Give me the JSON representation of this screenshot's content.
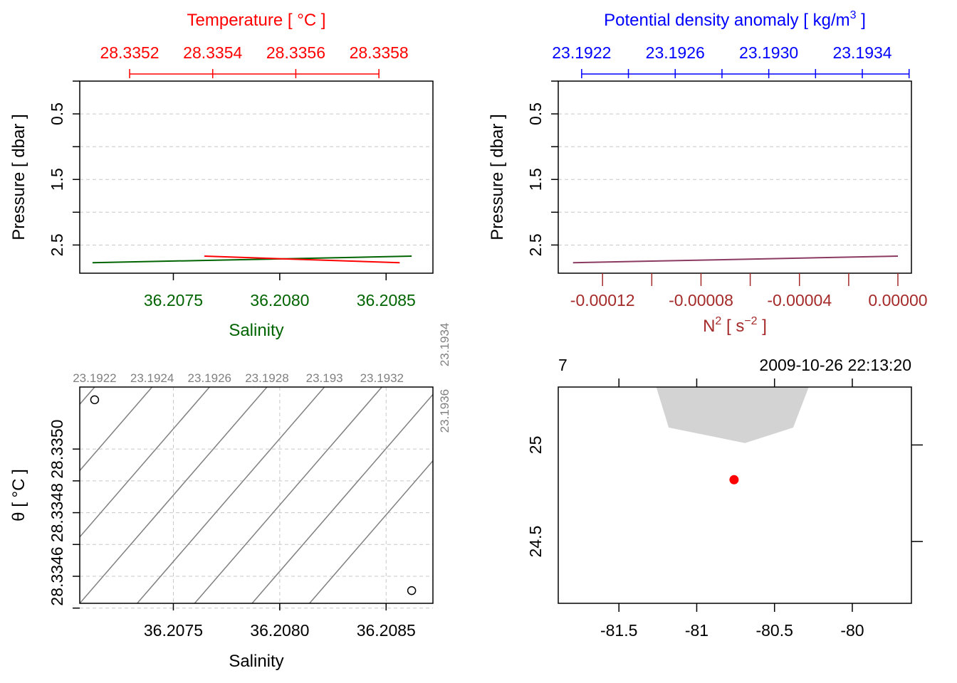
{
  "colors": {
    "temperature": "#ff0000",
    "salinity": "#006400",
    "density": "#0000ff",
    "n2": "#a52a2a",
    "profile": "#8b3a62",
    "isopycnal": "#808080",
    "grid": "#c8c8c8",
    "coast": "#d3d3d3",
    "station": "#ff0000"
  },
  "chart_data": [
    {
      "type": "line",
      "panel": "temperature-salinity-profile",
      "title": "Temperature [ °C ]",
      "xlabel": "Salinity",
      "ylabel": "Pressure [ dbar ]",
      "x_temperature_lim": [
        28.33508,
        28.33593
      ],
      "x_salinity_lim": [
        36.20706,
        36.20872
      ],
      "ylim": [
        0,
        2.93
      ],
      "y_reversed": true,
      "temperature_ticks": [
        "28.3352",
        "28.3354",
        "28.3356",
        "28.3358"
      ],
      "salinity_ticks": [
        "36.2075",
        "36.2080",
        "36.2085"
      ],
      "y_ticks": [
        "0.5",
        "1.5",
        "2.5"
      ],
      "y_minor_ticks": [
        0,
        0.5,
        1,
        1.5,
        2,
        2.5
      ],
      "grid": true,
      "series": [
        {
          "key": "temperature",
          "x": [
            28.33538,
            28.33585
          ],
          "y": [
            2.67,
            2.77
          ]
        },
        {
          "key": "salinity",
          "x": [
            36.20712,
            36.20862
          ],
          "y": [
            2.77,
            2.67
          ]
        }
      ]
    },
    {
      "type": "line",
      "panel": "density-n2-profile",
      "title": "Potential density anomaly [ kg/m",
      "title_sup": "3",
      "title_end": " ]",
      "xlabel": "N",
      "xlabel_sup": "2",
      "xlabel_mid": " [ s",
      "xlabel_sup2": "−2",
      "xlabel_end": " ]",
      "ylabel": "Pressure [ dbar ]",
      "x_density_lim": [
        23.1921,
        23.19361
      ],
      "x_n2_lim": [
        -0.000138,
        5.5e-06
      ],
      "ylim": [
        0,
        2.93
      ],
      "y_reversed": true,
      "density_ticks": [
        "23.1922",
        "23.1926",
        "23.1930",
        "23.1934"
      ],
      "density_minor_ticks": [
        23.1922,
        23.1924,
        23.1926,
        23.1928,
        23.193,
        23.1932,
        23.1934,
        23.1936
      ],
      "n2_ticks": [
        "-0.00012",
        "-0.00008",
        "-0.00004",
        "0.00000"
      ],
      "n2_minor_ticks": [
        -0.00012,
        -0.0001,
        -8e-05,
        -6e-05,
        -4e-05,
        -2e-05,
        0
      ],
      "y_ticks": [
        "0.5",
        "1.5",
        "2.5"
      ],
      "y_minor_ticks": [
        0,
        0.5,
        1,
        1.5,
        2,
        2.5
      ],
      "grid": true,
      "series": [
        {
          "key": "n2",
          "x": [
            -0.000132,
            0.0
          ],
          "y": [
            2.77,
            2.67
          ]
        }
      ]
    },
    {
      "type": "scatter",
      "panel": "ts-diagram",
      "xlabel": "Salinity",
      "ylabel": "θ [ °C ]",
      "xlim": [
        36.20706,
        36.20872
      ],
      "ylim": [
        28.334515,
        28.335195
      ],
      "x_ticks": [
        "36.2075",
        "36.2080",
        "36.2085"
      ],
      "y_ticks": [
        "28.3346",
        "28.3348",
        "28.3350"
      ],
      "y_tick_values": [
        28.3346,
        28.3348,
        28.335
      ],
      "y_minor_ticks": [
        28.3345,
        28.3346,
        28.3347,
        28.3348,
        28.3349,
        28.335
      ],
      "points": [
        {
          "x": 36.20713,
          "y": 28.335155
        },
        {
          "x": 36.20862,
          "y": 28.334555
        }
      ],
      "isopycnals": [
        {
          "label": "23.1922",
          "top_x": 36.20713,
          "bottom_x": 36.20625
        },
        {
          "label": "23.1924",
          "top_x": 36.2074,
          "bottom_x": 36.20652
        },
        {
          "label": "23.1926",
          "top_x": 36.20767,
          "bottom_x": 36.20679
        },
        {
          "label": "23.1928",
          "top_x": 36.20794,
          "bottom_x": 36.20706
        },
        {
          "label": "23.193",
          "top_x": 36.20821,
          "bottom_x": 36.20733
        },
        {
          "label": "23.1932",
          "top_x": 36.20848,
          "bottom_x": 36.2076
        },
        {
          "label": "23.1934",
          "top_x": 36.20875,
          "bottom_x": 36.20787
        },
        {
          "label": "23.1936",
          "top_x": 36.20902,
          "bottom_x": 36.20814
        }
      ]
    },
    {
      "type": "map",
      "panel": "station-map",
      "top_left_label": "7",
      "top_right_label": "2009-10-26 22:13:20",
      "xlim": [
        -81.89,
        -79.62
      ],
      "ylim": [
        24.18,
        25.3
      ],
      "x_ticks": [
        "-81.5",
        "-81",
        "-80.5",
        "-80"
      ],
      "x_tick_values": [
        -81.5,
        -81,
        -80.5,
        -80
      ],
      "y_ticks": [
        "24.5",
        "25"
      ],
      "y_tick_values": [
        24.5,
        25
      ],
      "coast": [
        [
          -81.26,
          25.3
        ],
        [
          -81.18,
          25.09
        ],
        [
          -80.69,
          25.01
        ],
        [
          -80.38,
          25.09
        ],
        [
          -80.28,
          25.3
        ]
      ],
      "station": {
        "lon": -80.76,
        "lat": 24.82
      }
    }
  ]
}
